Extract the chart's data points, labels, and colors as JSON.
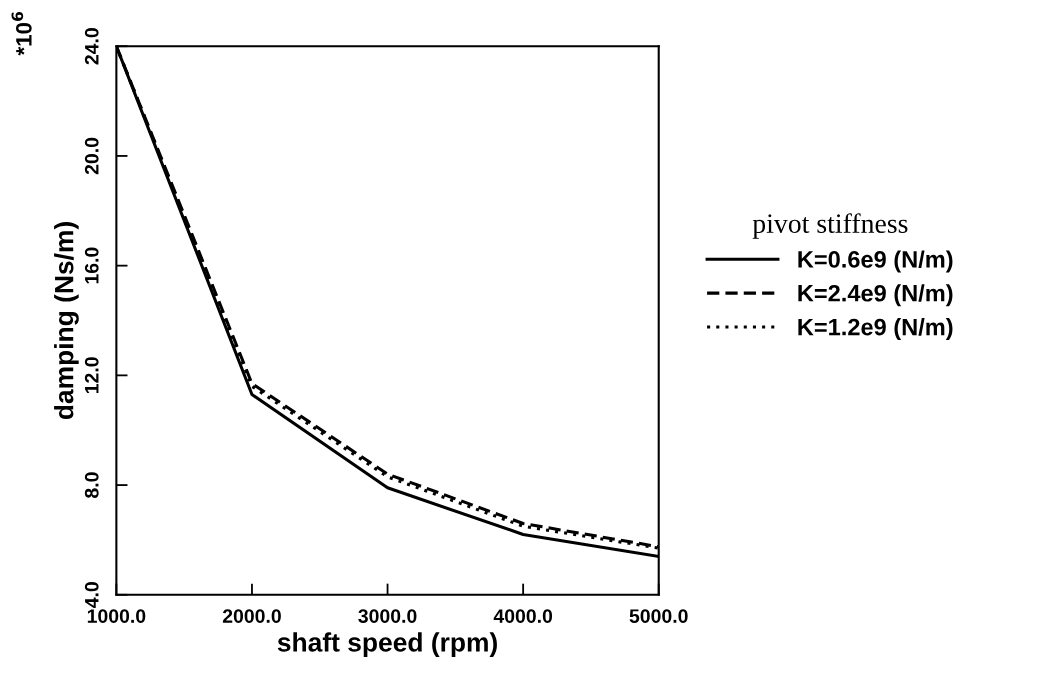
{
  "chart_data": {
    "type": "line",
    "xlabel": "shaft speed (rpm)",
    "ylabel": "damping (Ns/m)",
    "legend_title": "pivot stiffness",
    "annotations": [
      "*10$^{6}$"
    ],
    "x": [
      1000,
      2000,
      3000,
      4000,
      5000
    ],
    "series": [
      {
        "name": "K=0.6e9 (N/m)",
        "color": "#000000",
        "line_style": "solid",
        "values": [
          24.0,
          11.3,
          7.9,
          6.2,
          5.4
        ]
      },
      {
        "name": "K=2.4e9 (N/m)",
        "color": "#000000",
        "line_style": "dashed",
        "values": [
          24.0,
          11.7,
          8.4,
          6.6,
          5.75
        ]
      },
      {
        "name": "K=1.2e9 (N/m)",
        "color": "#000000",
        "line_style": "dotted",
        "values": [
          24.0,
          11.6,
          8.3,
          6.5,
          5.7
        ]
      }
    ],
    "xlim": [
      1000,
      5000
    ],
    "ylim": [
      4,
      24
    ],
    "xticks": [
      {
        "value": 1000,
        "label": "1000.0"
      },
      {
        "value": 2000,
        "label": "2000.0"
      },
      {
        "value": 3000,
        "label": "3000.0"
      },
      {
        "value": 4000,
        "label": "4000.0"
      },
      {
        "value": 5000,
        "label": "5000.0"
      }
    ],
    "yticks": [
      {
        "value": 4,
        "label": "4.0"
      },
      {
        "value": 8,
        "label": "8.0"
      },
      {
        "value": 12,
        "label": "12.0"
      },
      {
        "value": 16,
        "label": "16.0"
      },
      {
        "value": 20,
        "label": "20.0"
      },
      {
        "value": 24,
        "label": "24.0"
      }
    ],
    "grid": false,
    "legend": "right",
    "marker": "none"
  }
}
